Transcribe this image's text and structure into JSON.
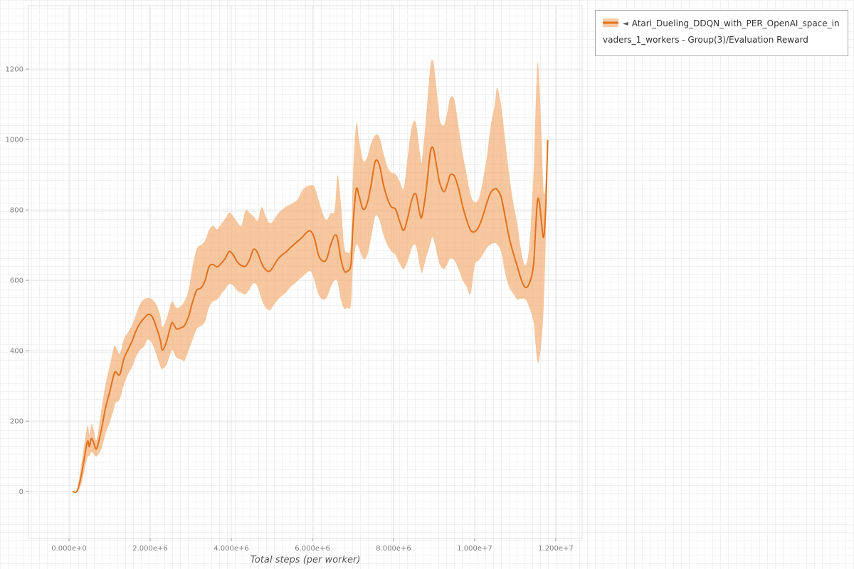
{
  "legend": {
    "toggle_icon": "◄"
  },
  "chart_data": {
    "type": "line",
    "title": "",
    "xlabel": "Total steps (per worker)",
    "ylabel": "",
    "x_unit": "millions of steps",
    "xlim": [
      -1.0,
      12.65
    ],
    "ylim": [
      -133,
      1380
    ],
    "grid": true,
    "legend_position": "top-right",
    "x_ticks": [
      {
        "v": 0,
        "label": "0.000e+0"
      },
      {
        "v": 2,
        "label": "2.000e+6"
      },
      {
        "v": 4,
        "label": "4.000e+6"
      },
      {
        "v": 6,
        "label": "6.000e+6"
      },
      {
        "v": 8,
        "label": "8.000e+6"
      },
      {
        "v": 10,
        "label": "1.000e+7"
      },
      {
        "v": 12,
        "label": "1.200e+7"
      }
    ],
    "y_ticks": [
      0,
      200,
      400,
      600,
      800,
      1000,
      1200
    ],
    "series": [
      {
        "name": "Atari_Dueling_DDQN_with_PER_OpenAI_space_invaders_1_workers - Group(3)/Evaluation Reward",
        "color": "#e2711d",
        "band_color": "#f3a96c",
        "x": [
          0.1,
          0.2,
          0.3,
          0.45,
          0.5,
          0.55,
          0.6,
          0.68,
          0.8,
          0.9,
          1.0,
          1.1,
          1.15,
          1.25,
          1.35,
          1.45,
          1.55,
          1.65,
          1.75,
          1.85,
          1.95,
          2.05,
          2.15,
          2.25,
          2.3,
          2.4,
          2.5,
          2.55,
          2.65,
          2.75,
          2.85,
          2.95,
          3.05,
          3.15,
          3.25,
          3.35,
          3.45,
          3.55,
          3.65,
          3.75,
          3.85,
          3.95,
          4.05,
          4.15,
          4.25,
          4.35,
          4.45,
          4.55,
          4.65,
          4.75,
          4.85,
          4.95,
          5.05,
          5.15,
          5.25,
          5.35,
          5.45,
          5.55,
          5.65,
          5.75,
          5.85,
          5.95,
          6.05,
          6.15,
          6.25,
          6.35,
          6.45,
          6.55,
          6.62,
          6.7,
          6.78,
          6.85,
          6.95,
          7.0,
          7.08,
          7.15,
          7.25,
          7.35,
          7.45,
          7.55,
          7.65,
          7.75,
          7.85,
          7.95,
          8.05,
          8.15,
          8.25,
          8.35,
          8.45,
          8.55,
          8.65,
          8.7,
          8.8,
          8.9,
          8.95,
          9.0,
          9.1,
          9.15,
          9.25,
          9.35,
          9.4,
          9.5,
          9.6,
          9.7,
          9.8,
          9.9,
          10.0,
          10.1,
          10.2,
          10.3,
          10.4,
          10.5,
          10.55,
          10.65,
          10.75,
          10.85,
          10.95,
          11.05,
          11.15,
          11.25,
          11.35,
          11.45,
          11.5,
          11.55,
          11.6,
          11.65,
          11.7,
          11.75,
          11.8
        ],
        "y": [
          0,
          2,
          45,
          140,
          128,
          150,
          142,
          122,
          178,
          238,
          282,
          330,
          340,
          332,
          376,
          402,
          426,
          456,
          478,
          492,
          503,
          497,
          468,
          430,
          402,
          425,
          468,
          480,
          462,
          465,
          472,
          498,
          540,
          572,
          578,
          598,
          638,
          645,
          638,
          648,
          662,
          682,
          672,
          652,
          642,
          640,
          658,
          688,
          678,
          648,
          630,
          626,
          642,
          660,
          672,
          680,
          692,
          702,
          712,
          722,
          735,
          740,
          720,
          672,
          655,
          660,
          700,
          728,
          718,
          662,
          628,
          625,
          645,
          755,
          858,
          840,
          802,
          818,
          872,
          938,
          928,
          872,
          832,
          808,
          802,
          768,
          742,
          778,
          828,
          845,
          788,
          782,
          852,
          958,
          978,
          965,
          898,
          872,
          852,
          882,
          900,
          896,
          862,
          812,
          772,
          742,
          738,
          752,
          782,
          820,
          850,
          860,
          858,
          838,
          782,
          722,
          678,
          640,
          602,
          580,
          592,
          642,
          742,
          828,
          818,
          762,
          722,
          802,
          997
        ],
        "lower": [
          0,
          0,
          20,
          95,
          100,
          112,
          108,
          100,
          122,
          165,
          195,
          232,
          252,
          262,
          302,
          332,
          352,
          382,
          402,
          412,
          432,
          420,
          390,
          356,
          348,
          360,
          392,
          402,
          380,
          376,
          372,
          402,
          432,
          462,
          470,
          482,
          522,
          540,
          545,
          560,
          575,
          590,
          585,
          570,
          565,
          560,
          575,
          592,
          582,
          545,
          522,
          515,
          530,
          545,
          556,
          565,
          580,
          590,
          600,
          610,
          620,
          626,
          600,
          560,
          546,
          550,
          580,
          600,
          596,
          546,
          520,
          522,
          530,
          640,
          700,
          690,
          662,
          670,
          722,
          782,
          772,
          730,
          700,
          682,
          672,
          648,
          632,
          655,
          692,
          698,
          640,
          622,
          662,
          702,
          722,
          712,
          662,
          642,
          632,
          652,
          662,
          656,
          632,
          602,
          582,
          562,
          642,
          656,
          672,
          692,
          702,
          706,
          702,
          682,
          622,
          582,
          562,
          546,
          548,
          546,
          522,
          482,
          422,
          368,
          382,
          432,
          522,
          702,
          990
        ],
        "upper": [
          0,
          6,
          75,
          185,
          162,
          190,
          178,
          148,
          235,
          305,
          355,
          408,
          412,
          392,
          432,
          452,
          472,
          502,
          532,
          546,
          550,
          546,
          532,
          500,
          468,
          490,
          530,
          540,
          522,
          526,
          542,
          572,
          642,
          690,
          700,
          712,
          742,
          755,
          745,
          760,
          775,
          792,
          782,
          765,
          756,
          798,
          792,
          782,
          770,
          808,
          782,
          762,
          772,
          790,
          800,
          810,
          815,
          822,
          832,
          855,
          866,
          870,
          866,
          830,
          792,
          772,
          790,
          800,
          898,
          820,
          700,
          680,
          702,
          900,
          1045,
          1000,
          940,
          950,
          990,
          1012,
          1008,
          962,
          922,
          906,
          902,
          882,
          862,
          952,
          1035,
          1048,
          962,
          940,
          1062,
          1200,
          1225,
          1208,
          1100,
          1052,
          1042,
          1092,
          1120,
          1112,
          1040,
          962,
          902,
          842,
          822,
          832,
          882,
          952,
          1042,
          1102,
          1146,
          1100,
          1002,
          902,
          822,
          762,
          682,
          642,
          702,
          902,
          1082,
          1218,
          1152,
          1002,
          852,
          882,
          1004
        ]
      }
    ]
  }
}
